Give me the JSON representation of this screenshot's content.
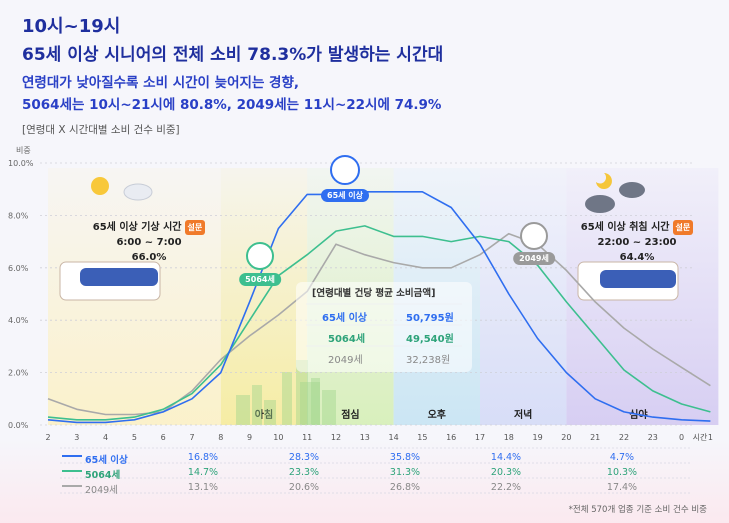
{
  "header": {
    "line1": "10시~19시",
    "line2": "65세 이상 시니어의 전체 소비 78.3%가 발생하는 시간대",
    "sub1": "연령대가 낮아질수록 소비 시간이 늦어지는 경향,",
    "sub2": "5064세는 10시~21시에 80.8%, 2049세는 11시~22시에 74.9%"
  },
  "chart_title": "[연령대 X 시간대별 소비 건수 비중]",
  "footnote": "*전체 570개 업종 기준 소비 건수 비중",
  "colors": {
    "senior": "#2f6ef0",
    "mid": "#3dbf8f",
    "young": "#a9a9a9",
    "survey_badge": "#f07a2a"
  },
  "chart_data": {
    "type": "line",
    "ylabel": "비중",
    "xlabel": "시간",
    "ylim": [
      0,
      10
    ],
    "y_ticks": [
      "0.0%",
      "2.0%",
      "4.0%",
      "6.0%",
      "8.0%",
      "10.0%"
    ],
    "x": [
      "2",
      "3",
      "4",
      "5",
      "6",
      "7",
      "8",
      "9",
      "10",
      "11",
      "12",
      "13",
      "14",
      "15",
      "16",
      "17",
      "18",
      "19",
      "20",
      "21",
      "22",
      "23",
      "0",
      "1"
    ],
    "series": [
      {
        "name": "65세 이상",
        "key": "senior",
        "values": [
          0.2,
          0.1,
          0.1,
          0.2,
          0.5,
          1.0,
          2.0,
          4.7,
          7.5,
          8.8,
          8.8,
          8.9,
          8.9,
          8.9,
          8.3,
          6.9,
          5.0,
          3.3,
          2.0,
          1.0,
          0.5,
          0.3,
          0.2,
          0.15
        ]
      },
      {
        "name": "5064세",
        "key": "mid",
        "values": [
          0.3,
          0.2,
          0.2,
          0.3,
          0.6,
          1.2,
          2.3,
          4.0,
          5.7,
          6.5,
          7.4,
          7.6,
          7.2,
          7.2,
          7.0,
          7.2,
          7.0,
          6.1,
          4.7,
          3.4,
          2.1,
          1.3,
          0.8,
          0.5
        ]
      },
      {
        "name": "2049세",
        "key": "young",
        "values": [
          1.0,
          0.6,
          0.4,
          0.4,
          0.5,
          1.3,
          2.5,
          3.4,
          4.2,
          5.1,
          6.9,
          6.5,
          6.2,
          6.0,
          6.0,
          6.5,
          7.3,
          6.9,
          5.9,
          4.7,
          3.7,
          2.9,
          2.2,
          1.5
        ]
      }
    ],
    "periods": [
      {
        "label": "아침",
        "color": "#f6ec9f"
      },
      {
        "label": "점심",
        "color": "#d7efb9"
      },
      {
        "label": "오후",
        "color": "#c9e5f3"
      },
      {
        "label": "저녁",
        "color": "#d6dcf7"
      },
      {
        "label": "심야",
        "color": "#d5ccf2"
      }
    ],
    "table": {
      "rows": [
        {
          "name": "65세 이상",
          "values": [
            "16.8%",
            "28.3%",
            "35.8%",
            "14.4%",
            "4.7%"
          ]
        },
        {
          "name": "5064세",
          "values": [
            "14.7%",
            "23.3%",
            "31.3%",
            "20.3%",
            "10.3%"
          ]
        },
        {
          "name": "2049세",
          "values": [
            "13.1%",
            "20.6%",
            "26.8%",
            "22.2%",
            "17.4%"
          ]
        }
      ]
    },
    "avatars": {
      "senior": "65세 이상",
      "mid": "5064세",
      "young": "2049세"
    },
    "wake": {
      "title": "65세 이상 기상 시간",
      "badge": "설문",
      "time": "6:00 ~ 7:00",
      "pct": "66.0%"
    },
    "sleep": {
      "title": "65세 이상 취침 시간",
      "badge": "설문",
      "time": "22:00 ~ 23:00",
      "pct": "64.4%"
    },
    "summary": {
      "title": "[연령대별 건당 평균 소비금액]",
      "rows": [
        {
          "name": "65세 이상",
          "value": "50,795원"
        },
        {
          "name": "5064세",
          "value": "49,540원"
        },
        {
          "name": "2049세",
          "value": "32,238원"
        }
      ]
    }
  }
}
